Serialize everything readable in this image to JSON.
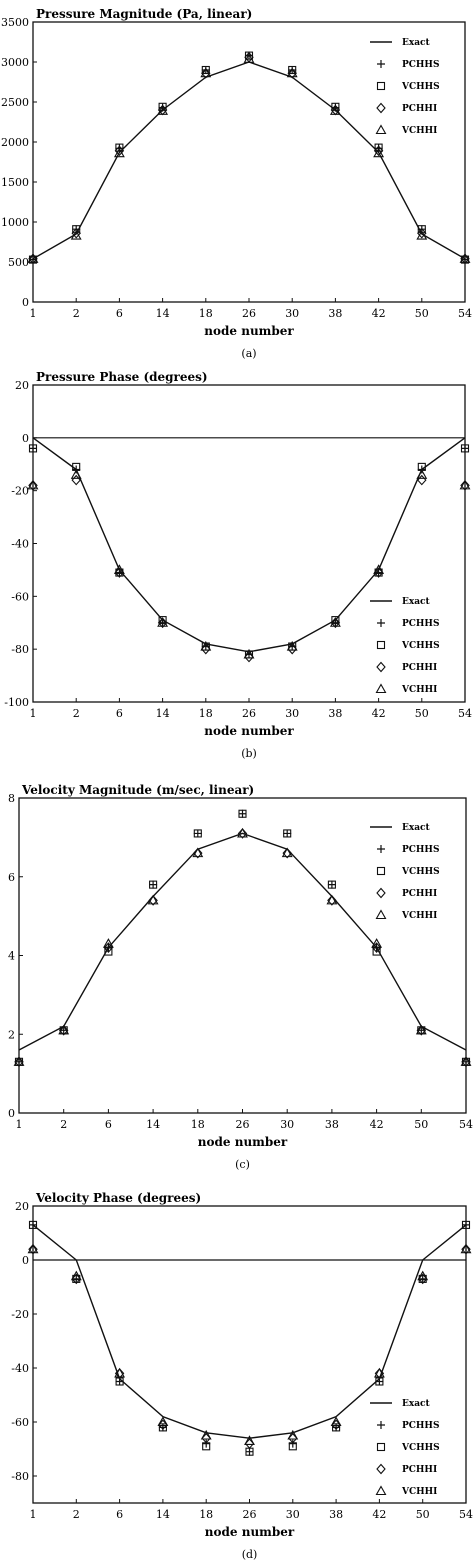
{
  "chart_data": [
    {
      "type": "line",
      "title": "Pressure Magnitude (Pa, linear)",
      "xlabel": "node number",
      "caption": "(a)",
      "categories": [
        "1",
        "2",
        "6",
        "14",
        "18",
        "26",
        "30",
        "38",
        "42",
        "50",
        "54"
      ],
      "ylim": [
        0,
        3500
      ],
      "yticks": [
        0,
        500,
        1000,
        1500,
        2000,
        2500,
        3000,
        3500
      ],
      "legend_position": "top-right",
      "series": [
        {
          "name": "Exact",
          "marker": "line",
          "values": [
            540,
            850,
            1870,
            2400,
            2810,
            3000,
            2810,
            2400,
            1870,
            850,
            540
          ]
        },
        {
          "name": "PCHHS",
          "marker": "plus",
          "values": [
            530,
            910,
            1920,
            2430,
            2900,
            3080,
            2900,
            2430,
            1920,
            910,
            530
          ]
        },
        {
          "name": "VCHHS",
          "marker": "square",
          "values": [
            530,
            910,
            1930,
            2440,
            2900,
            3080,
            2900,
            2440,
            1930,
            910,
            530
          ]
        },
        {
          "name": "PCHHI",
          "marker": "diamond",
          "values": [
            540,
            860,
            1890,
            2400,
            2860,
            3060,
            2860,
            2400,
            1890,
            860,
            540
          ]
        },
        {
          "name": "VCHHI",
          "marker": "triangle",
          "values": [
            540,
            830,
            1860,
            2390,
            2860,
            3040,
            2860,
            2390,
            1860,
            830,
            540
          ]
        }
      ]
    },
    {
      "type": "line",
      "title": "Pressure Phase (degrees)",
      "xlabel": "node number",
      "caption": "(b)",
      "categories": [
        "1",
        "2",
        "6",
        "14",
        "18",
        "26",
        "30",
        "38",
        "42",
        "50",
        "54"
      ],
      "ylim": [
        -100,
        20
      ],
      "yticks": [
        20,
        0,
        -20,
        -40,
        -60,
        -80,
        -100
      ],
      "reference_line": 0,
      "legend_position": "bottom-right",
      "series": [
        {
          "name": "Exact",
          "marker": "line",
          "values": [
            0,
            -12,
            -50,
            -69,
            -78,
            -81,
            -78,
            -69,
            -50,
            -12,
            0
          ]
        },
        {
          "name": "PCHHS",
          "marker": "plus",
          "values": [
            -4,
            -12,
            -51,
            -70,
            -79,
            -82,
            -79,
            -70,
            -51,
            -12,
            -4
          ]
        },
        {
          "name": "VCHHS",
          "marker": "square",
          "values": [
            -4,
            -11,
            -51,
            -69,
            -79,
            -82,
            -79,
            -69,
            -51,
            -11,
            -4
          ]
        },
        {
          "name": "PCHHI",
          "marker": "diamond",
          "values": [
            -18,
            -16,
            -51,
            -70,
            -80,
            -83,
            -80,
            -70,
            -51,
            -16,
            -18
          ]
        },
        {
          "name": "VCHHI",
          "marker": "triangle",
          "values": [
            -18,
            -14,
            -50,
            -70,
            -79,
            -82,
            -79,
            -70,
            -50,
            -14,
            -18
          ]
        }
      ]
    },
    {
      "type": "line",
      "title": "Velocity Magnitude (m/sec, linear)",
      "xlabel": "node number",
      "caption": "(c)",
      "categories": [
        "1",
        "2",
        "6",
        "14",
        "18",
        "26",
        "30",
        "38",
        "42",
        "50",
        "54"
      ],
      "ylim": [
        0,
        8
      ],
      "yticks": [
        0,
        2,
        4,
        6,
        8
      ],
      "legend_position": "top-right",
      "series": [
        {
          "name": "Exact",
          "marker": "line",
          "values": [
            1.6,
            2.2,
            4.2,
            5.5,
            6.7,
            7.1,
            6.7,
            5.5,
            4.2,
            2.2,
            1.6
          ]
        },
        {
          "name": "PCHHS",
          "marker": "plus",
          "values": [
            1.3,
            2.1,
            4.2,
            5.8,
            7.1,
            7.6,
            7.1,
            5.8,
            4.2,
            2.1,
            1.3
          ]
        },
        {
          "name": "VCHHS",
          "marker": "square",
          "values": [
            1.3,
            2.1,
            4.1,
            5.8,
            7.1,
            7.6,
            7.1,
            5.8,
            4.1,
            2.1,
            1.3
          ]
        },
        {
          "name": "PCHHI",
          "marker": "diamond",
          "values": [
            1.3,
            2.1,
            4.2,
            5.4,
            6.6,
            7.1,
            6.6,
            5.4,
            4.2,
            2.1,
            1.3
          ]
        },
        {
          "name": "VCHHI",
          "marker": "triangle",
          "values": [
            1.3,
            2.1,
            4.3,
            5.4,
            6.6,
            7.1,
            6.6,
            5.4,
            4.3,
            2.1,
            1.3
          ]
        }
      ]
    },
    {
      "type": "line",
      "title": "Velocity Phase (degrees)",
      "xlabel": "node number",
      "caption": "(d)",
      "categories": [
        "1",
        "2",
        "6",
        "14",
        "18",
        "26",
        "30",
        "38",
        "42",
        "50",
        "54"
      ],
      "ylim": [
        -90,
        20
      ],
      "yticks": [
        20,
        0,
        -20,
        -40,
        -60,
        -80
      ],
      "reference_line": 0,
      "legend_position": "bottom-right",
      "series": [
        {
          "name": "Exact",
          "marker": "line",
          "values": [
            13,
            0,
            -44,
            -58,
            -64,
            -66,
            -64,
            -58,
            -44,
            0,
            13
          ]
        },
        {
          "name": "PCHHS",
          "marker": "plus",
          "values": [
            13,
            -7,
            -45,
            -62,
            -68,
            -71,
            -68,
            -62,
            -45,
            -7,
            13
          ]
        },
        {
          "name": "VCHHS",
          "marker": "square",
          "values": [
            13,
            -7,
            -45,
            -62,
            -69,
            -71,
            -69,
            -62,
            -45,
            -7,
            13
          ]
        },
        {
          "name": "PCHHI",
          "marker": "diamond",
          "values": [
            4,
            -7,
            -42,
            -61,
            -66,
            -68,
            -66,
            -61,
            -42,
            -7,
            4
          ]
        },
        {
          "name": "VCHHI",
          "marker": "triangle",
          "values": [
            4,
            -6,
            -42,
            -60,
            -65,
            -67,
            -65,
            -60,
            -42,
            -6,
            4
          ]
        }
      ]
    }
  ]
}
